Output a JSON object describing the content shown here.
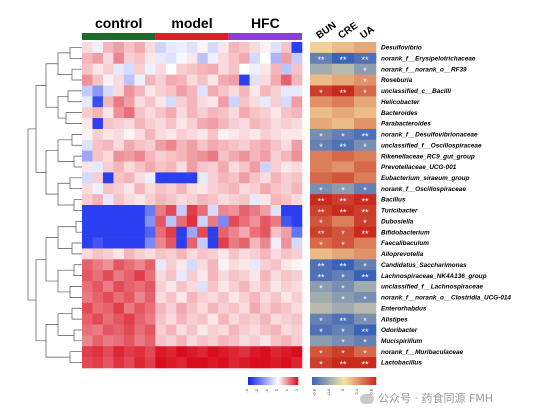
{
  "chart_data": {
    "type": "heatmap",
    "groups": [
      {
        "name": "control",
        "color": "#1f6b2a",
        "columns": 7
      },
      {
        "name": "model",
        "color": "#e11d2a",
        "columns": 7
      },
      {
        "name": "HFC",
        "color": "#8b3fd4",
        "columns": 7
      }
    ],
    "clinical_columns": [
      "BUN",
      "CRE",
      "UA"
    ],
    "rows": [
      "Desulfovibrio",
      "norank_f__Erysipelotrichaceae",
      "norank_f__norank_o__RF39",
      "Roseburia",
      "unclassified_c__Bacilli",
      "Helicobacter",
      "Bacteroides",
      "Parabacteroides",
      "norank_f__Desulfovibrionaceae",
      "unclassified_f__Oscillospiraceae",
      "Rikenellaceae_RC9_gut_group",
      "Prevotellaceae_UCG-001",
      "Eubacterium_siraeum_group",
      "norank_f__Oscillospiraceae",
      "Bacillus",
      "Turicibacter",
      "Dubosiella",
      "Bifidobacterium",
      "Faecalibaculum",
      "Alloprevotella",
      "Candidatus_Saccharimonas",
      "Lachnospiraceae_NK4A136_group",
      "unclassified_f__Lachnospiraceae",
      "norank_f__norank_o__Clostridia_UCG-014",
      "Enterorhabdus",
      "Alistipes",
      "Odoribacter",
      "Mucispirillum",
      "norank_f__Muribaculaceae",
      "Lactobacillus"
    ],
    "values": [
      [
        0.3,
        -0.2,
        0.6,
        0.8,
        0.5,
        0.7,
        0.3,
        -0.6,
        -0.3,
        -0.2,
        -0.4,
        0.1,
        -0.5,
        0.2,
        0.6,
        0.5,
        0.3,
        0.1,
        -0.4,
        0.5,
        -2.6
      ],
      [
        0.6,
        0.8,
        0.3,
        1.0,
        0.4,
        0.5,
        0.2,
        -0.3,
        -0.4,
        -0.1,
        0.2,
        -0.8,
        -0.2,
        0.3,
        0.5,
        0.7,
        -0.5,
        0.0,
        -1.0,
        0.8,
        -0.7
      ],
      [
        0.5,
        0.2,
        0.4,
        -0.3,
        -0.5,
        0.4,
        -0.2,
        0.3,
        0.0,
        0.4,
        0.5,
        0.6,
        0.7,
        0.3,
        0.5,
        0.0,
        -0.2,
        0.2,
        0.6,
        -0.8,
        0.5
      ],
      [
        0.9,
        0.5,
        0.1,
        0.3,
        -0.8,
        -0.2,
        0.6,
        0.4,
        0.7,
        0.6,
        0.3,
        0.5,
        0.2,
        0.7,
        0.8,
        -2.6,
        -0.4,
        0.3,
        0.7,
        1.3,
        0.6
      ],
      [
        -0.7,
        -1.4,
        -0.5,
        0.3,
        0.9,
        0.6,
        0.2,
        0.4,
        0.5,
        0.8,
        0.6,
        -0.4,
        0.7,
        0.5,
        0.3,
        0.6,
        0.2,
        0.6,
        0.4,
        -0.3,
        -0.3
      ],
      [
        -0.3,
        -2.4,
        0.6,
        1.1,
        0.8,
        0.3,
        0.5,
        0.2,
        -0.5,
        0.4,
        0.6,
        0.3,
        0.2,
        0.8,
        -0.6,
        0.5,
        0.3,
        -0.3,
        0.4,
        -0.5,
        0.8
      ],
      [
        0.4,
        0.6,
        0.2,
        0.9,
        1.2,
        0.5,
        0.3,
        0.5,
        0.7,
        0.3,
        0.6,
        0.4,
        0.6,
        0.5,
        0.3,
        0.7,
        0.5,
        0.4,
        0.2,
        0.5,
        0.6
      ],
      [
        0.2,
        -2.6,
        0.5,
        0.4,
        0.3,
        0.6,
        0.4,
        0.3,
        0.5,
        0.2,
        0.4,
        0.7,
        0.8,
        0.6,
        0.4,
        0.3,
        0.6,
        0.5,
        0.3,
        0.4,
        0.3
      ],
      [
        0.1,
        0.4,
        0.2,
        0.3,
        0.1,
        0.3,
        0.6,
        0.3,
        0.2,
        0.4,
        0.3,
        0.2,
        0.5,
        0.1,
        0.2,
        0.3,
        0.2,
        0.4,
        0.3,
        0.2,
        0.2
      ],
      [
        -0.4,
        0.5,
        0.6,
        0.3,
        0.7,
        0.5,
        0.4,
        0.8,
        1.0,
        0.6,
        0.8,
        0.5,
        0.7,
        0.6,
        0.5,
        0.4,
        0.6,
        0.7,
        0.5,
        0.3,
        0.8
      ],
      [
        -1.2,
        0.5,
        0.3,
        0.9,
        0.8,
        1.0,
        0.6,
        0.4,
        0.5,
        0.6,
        0.8,
        0.9,
        1.1,
        0.5,
        0.7,
        0.9,
        0.6,
        0.8,
        0.4,
        0.6,
        0.9
      ],
      [
        0.2,
        -0.3,
        0.4,
        0.6,
        0.3,
        0.5,
        0.7,
        0.5,
        0.6,
        0.3,
        0.8,
        0.5,
        0.4,
        0.7,
        0.3,
        0.5,
        0.8,
        -0.6,
        0.4,
        0.2,
        0.3
      ],
      [
        -0.5,
        0.4,
        -2.6,
        0.5,
        0.6,
        0.3,
        -0.2,
        -2.6,
        -2.6,
        -2.6,
        -2.6,
        -0.3,
        0.4,
        0.6,
        0.5,
        0.8,
        0.5,
        0.3,
        0.6,
        0.4,
        0.5
      ],
      [
        0.3,
        -0.2,
        0.5,
        0.4,
        0.2,
        0.6,
        0.3,
        0.5,
        0.4,
        0.6,
        0.3,
        0.2,
        0.4,
        0.5,
        0.6,
        0.3,
        0.4,
        0.7,
        0.5,
        0.4,
        0.6
      ],
      [
        0.4,
        0.6,
        -0.3,
        0.5,
        0.3,
        0.2,
        0.4,
        0.6,
        0.5,
        0.3,
        0.4,
        0.6,
        0.5,
        0.3,
        0.4,
        0.5,
        -0.3,
        0.2,
        0.6,
        0.5,
        0.3
      ],
      [
        -2.6,
        -2.6,
        -2.6,
        -2.6,
        -2.6,
        -2.6,
        -1.8,
        1.1,
        1.5,
        -0.7,
        1.6,
        1.2,
        -0.5,
        1.0,
        0.9,
        1.3,
        1.1,
        0.8,
        -0.4,
        -2.6,
        -2.6
      ],
      [
        -2.6,
        -2.6,
        -2.6,
        -2.6,
        -2.6,
        -2.6,
        -1.5,
        1.4,
        -0.8,
        1.2,
        1.7,
        -0.6,
        1.1,
        -1.6,
        1.5,
        1.2,
        0.9,
        1.4,
        1.1,
        -2.3,
        -2.6
      ],
      [
        -2.6,
        -2.6,
        -2.6,
        -2.6,
        -2.6,
        -2.6,
        -2.1,
        1.2,
        1.6,
        -2.6,
        -1.2,
        1.5,
        -2.6,
        1.3,
        1.0,
        0.7,
        1.2,
        1.4,
        0.5,
        0.8,
        -1.9
      ],
      [
        -2.6,
        -2.3,
        -2.6,
        -2.6,
        -2.6,
        -2.6,
        -1.6,
        1.0,
        1.4,
        -2.6,
        1.3,
        -0.7,
        -2.6,
        1.6,
        1.1,
        1.3,
        0.6,
        1.0,
        -0.2,
        0.9,
        -0.5
      ],
      [
        0.3,
        0.5,
        0.4,
        0.2,
        0.6,
        0.4,
        0.3,
        0.5,
        0.4,
        0.6,
        0.3,
        0.5,
        0.4,
        0.2,
        0.5,
        0.3,
        0.4,
        0.6,
        0.3,
        0.5,
        0.4
      ],
      [
        1.3,
        1.1,
        0.9,
        1.4,
        1.2,
        1.0,
        1.3,
        -0.3,
        0.4,
        0.2,
        -0.5,
        0.3,
        0.6,
        0.1,
        0.3,
        0.2,
        -0.3,
        0.4,
        0.5,
        0.2,
        0.1
      ],
      [
        1.4,
        1.2,
        1.5,
        1.1,
        1.3,
        1.6,
        1.2,
        0.3,
        0.5,
        -0.3,
        0.4,
        0.2,
        0.6,
        0.3,
        0.5,
        0.4,
        0.2,
        0.6,
        0.3,
        0.5,
        0.4
      ],
      [
        1.2,
        1.4,
        1.1,
        1.5,
        1.3,
        1.2,
        1.4,
        0.4,
        0.2,
        0.5,
        0.3,
        -0.4,
        0.5,
        0.2,
        0.4,
        0.6,
        0.3,
        0.5,
        0.2,
        0.4,
        0.3
      ],
      [
        1.1,
        1.3,
        1.5,
        1.2,
        1.4,
        1.0,
        1.3,
        0.3,
        0.5,
        0.2,
        0.6,
        0.4,
        0.3,
        0.5,
        0.2,
        0.4,
        0.6,
        0.3,
        0.5,
        0.2,
        0.4
      ],
      [
        1.5,
        1.2,
        1.3,
        1.6,
        1.1,
        1.4,
        1.2,
        0.6,
        0.4,
        0.7,
        0.5,
        0.3,
        0.6,
        0.4,
        0.5,
        0.3,
        0.7,
        0.4,
        0.6,
        0.5,
        0.3
      ],
      [
        1.3,
        1.5,
        1.2,
        1.4,
        1.6,
        1.3,
        1.1,
        0.5,
        0.3,
        0.6,
        0.4,
        0.5,
        0.2,
        0.6,
        0.3,
        0.5,
        0.4,
        0.6,
        0.3,
        0.4,
        0.5
      ],
      [
        1.2,
        1.1,
        1.4,
        1.3,
        1.5,
        1.2,
        1.4,
        0.4,
        0.6,
        0.3,
        0.5,
        0.2,
        0.4,
        0.3,
        0.6,
        0.4,
        0.3,
        0.5,
        0.6,
        0.3,
        0.4
      ],
      [
        1.0,
        1.3,
        1.1,
        1.2,
        1.4,
        1.1,
        1.3,
        0.5,
        0.4,
        0.6,
        0.3,
        0.5,
        0.4,
        0.6,
        0.5,
        0.3,
        0.4,
        0.2,
        0.5,
        0.6,
        0.4
      ],
      [
        1.6,
        1.7,
        1.5,
        1.8,
        1.6,
        1.7,
        1.5,
        1.9,
        1.8,
        2.0,
        1.9,
        1.8,
        2.0,
        1.9,
        1.8,
        1.7,
        1.9,
        2.0,
        1.8,
        1.9,
        2.0
      ],
      [
        1.5,
        1.6,
        1.4,
        1.7,
        1.5,
        1.8,
        1.6,
        2.0,
        1.9,
        1.8,
        2.1,
        2.0,
        1.9,
        2.1,
        1.8,
        1.9,
        2.0,
        2.1,
        1.9,
        2.0,
        1.8
      ]
    ],
    "clinical_corr": [
      [
        0.1,
        0.2,
        0.3
      ],
      [
        -0.7,
        -0.9,
        -0.8
      ],
      [
        -0.4,
        -0.3,
        -0.5
      ],
      [
        0.2,
        0.3,
        0.4
      ],
      [
        0.8,
        0.9,
        0.6
      ],
      [
        0.4,
        0.5,
        0.3
      ],
      [
        0.2,
        0.3,
        0.2
      ],
      [
        0.3,
        0.2,
        0.4
      ],
      [
        -0.6,
        -0.7,
        -0.8
      ],
      [
        -0.7,
        -0.8,
        -0.6
      ],
      [
        0.5,
        0.6,
        0.5
      ],
      [
        0.5,
        0.4,
        0.6
      ],
      [
        0.6,
        0.7,
        0.5
      ],
      [
        -0.6,
        -0.5,
        -0.7
      ],
      [
        0.9,
        0.8,
        0.9
      ],
      [
        0.8,
        0.9,
        0.8
      ],
      [
        0.7,
        0.5,
        0.8
      ],
      [
        0.8,
        0.7,
        0.9
      ],
      [
        0.6,
        0.7,
        0.5
      ],
      [
        0.2,
        0.3,
        0.4
      ],
      [
        -0.8,
        -0.9,
        -0.7
      ],
      [
        -0.8,
        -0.7,
        -0.9
      ],
      [
        -0.5,
        -0.6,
        -0.4
      ],
      [
        -0.4,
        -0.5,
        -0.6
      ],
      [
        -0.3,
        -0.4,
        -0.3
      ],
      [
        -0.7,
        -0.8,
        -0.6
      ],
      [
        -0.8,
        -0.7,
        -0.9
      ],
      [
        -0.5,
        -0.6,
        -0.7
      ],
      [
        0.7,
        0.8,
        0.6
      ],
      [
        0.8,
        0.9,
        0.9
      ]
    ],
    "clinical_stars": [
      [
        "",
        "",
        ""
      ],
      [
        "**",
        "**",
        "**"
      ],
      [
        "",
        "",
        "*"
      ],
      [
        "",
        "",
        "*"
      ],
      [
        "*",
        "**",
        "*"
      ],
      [
        "",
        "",
        ""
      ],
      [
        "",
        "",
        ""
      ],
      [
        "",
        "",
        ""
      ],
      [
        "*",
        "*",
        "**"
      ],
      [
        "*",
        "**",
        "*"
      ],
      [
        "",
        "",
        ""
      ],
      [
        "",
        "",
        ""
      ],
      [
        "",
        "",
        ""
      ],
      [
        "*",
        "*",
        "*"
      ],
      [
        "**",
        "**",
        "**"
      ],
      [
        "**",
        "**",
        "**"
      ],
      [
        "*",
        "",
        "*"
      ],
      [
        "**",
        "*",
        "**"
      ],
      [
        "*",
        "*",
        ""
      ],
      [
        "",
        "",
        ""
      ],
      [
        "**",
        "**",
        "*"
      ],
      [
        "**",
        "*",
        "**"
      ],
      [
        "*",
        "*",
        ""
      ],
      [
        "",
        "*",
        "*"
      ],
      [
        "",
        "",
        ""
      ],
      [
        "*",
        "**",
        "*"
      ],
      [
        "*",
        "*",
        "**"
      ],
      [
        "",
        "*",
        "*"
      ],
      [
        "*",
        "*",
        "*"
      ],
      [
        "*",
        "**",
        "**"
      ]
    ],
    "abundance_scale": {
      "min": -3,
      "max": 2,
      "low_color": "#0a22ee",
      "mid_color": "#ffffff",
      "high_color": "#d90d1d"
    },
    "correlation_scale": {
      "min": -0.9,
      "max": 0.9,
      "low_color": "#3a63b8",
      "mid_color": "#f5e6a6",
      "high_color": "#c82a1e"
    }
  },
  "watermark": {
    "text": "公众号 · 药食同源 FMH",
    "icon": "wechat-official-account-icon"
  }
}
